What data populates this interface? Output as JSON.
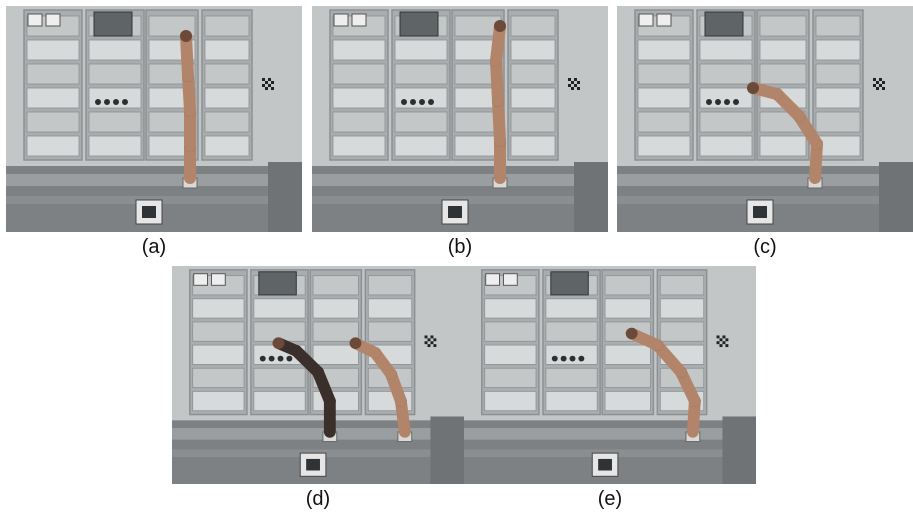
{
  "figure": {
    "panels": [
      {
        "label": "(a)",
        "arm": "upright"
      },
      {
        "label": "(b)",
        "arm": "raised-reaching"
      },
      {
        "label": "(c)",
        "arm": "bent-left"
      },
      {
        "label": "(d)",
        "arm": "dual-overlay"
      },
      {
        "label": "(e)",
        "arm": "bent-forward"
      }
    ]
  },
  "palette": {
    "wall": "#c3c6c7",
    "panel_dark": "#8c9092",
    "panel_mid": "#a9adaf",
    "panel_light": "#d7dadb",
    "floor": "#7d8183",
    "bench": "#9a9ea0",
    "arm": "#b2856a",
    "arm_dark": "#6b4a3a",
    "marker": "#2f3335"
  }
}
